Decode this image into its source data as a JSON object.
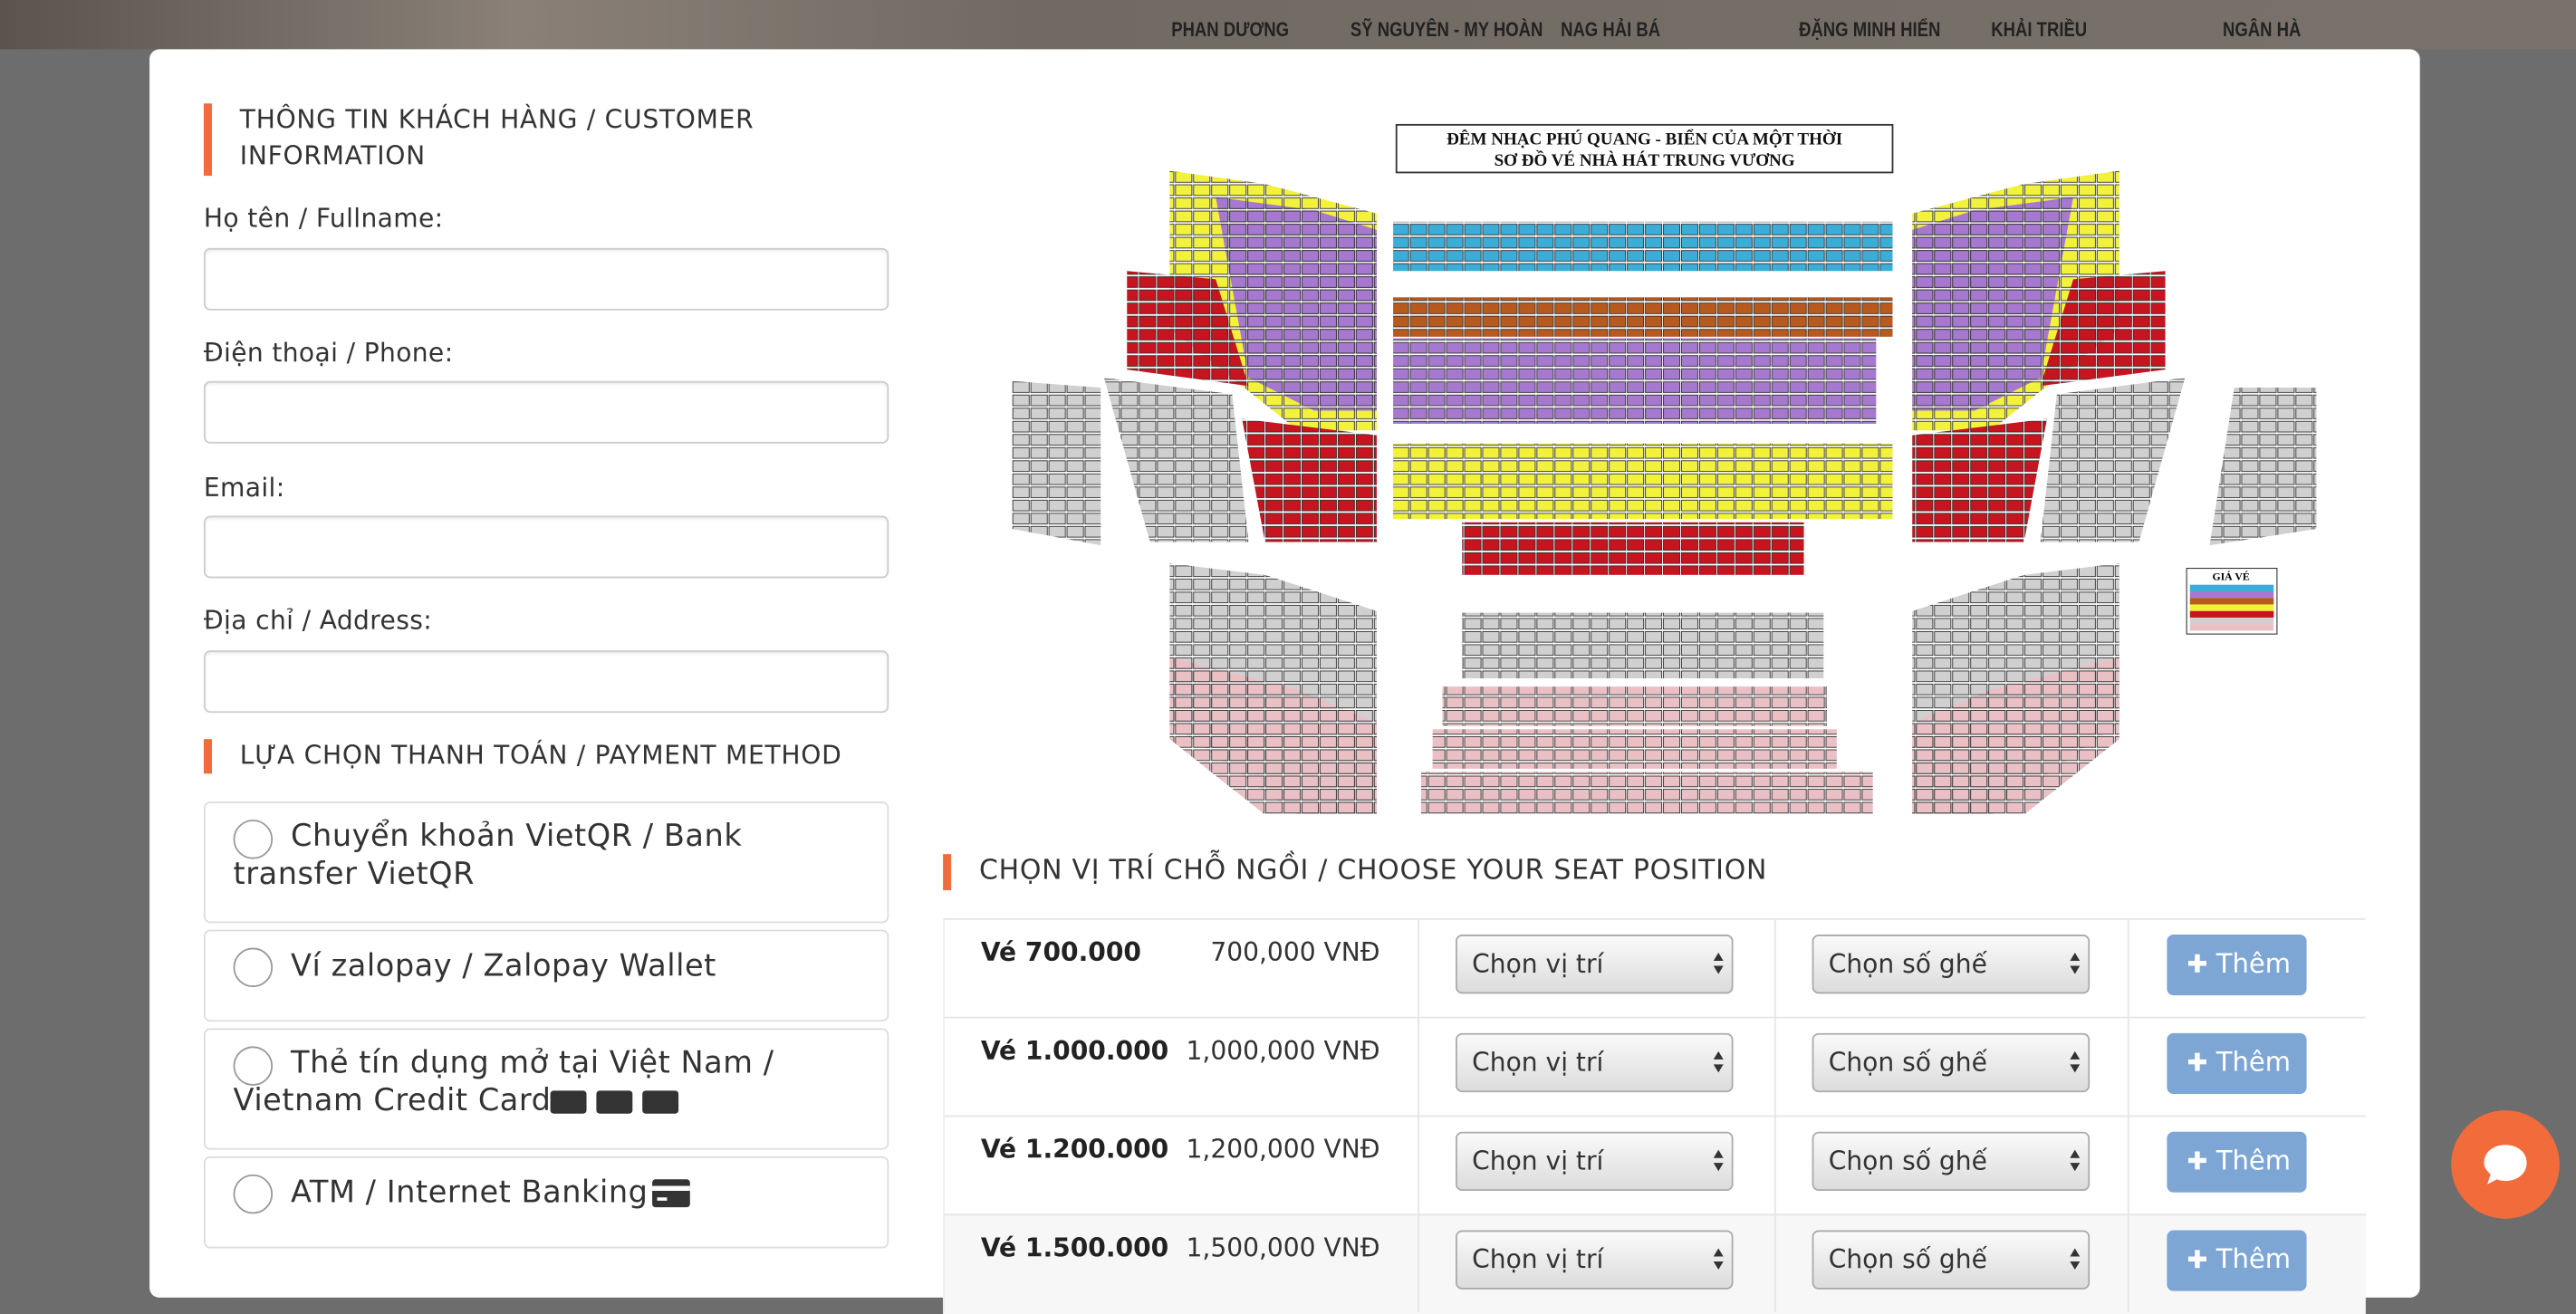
{
  "banner": {
    "credits": [
      "PHAN DƯƠNG",
      "SỸ NGUYÊN - MY HOÀN",
      "NAG HẢI BÁ",
      "ĐẶNG MINH HIỂN",
      "KHẢI TRIỀU",
      "NGÂN HÀ"
    ]
  },
  "customer": {
    "heading": "THÔNG TIN KHÁCH HÀNG / CUSTOMER INFORMATION",
    "fields": [
      "Họ tên / Fullname:",
      "Điện thoại / Phone:",
      "Email:",
      "Địa chỉ / Address:"
    ]
  },
  "payment": {
    "heading": "LỰA CHỌN THANH TOÁN / PAYMENT METHOD",
    "options": [
      "Chuyển khoản VietQR / Bank transfer VietQR",
      "Ví zalopay / Zalopay Wallet",
      "Thẻ tín dụng mở tại Việt Nam / Vietnam Credit Card",
      "ATM / Internet Banking"
    ]
  },
  "seat_map": {
    "title": "ĐÊM NHẠC PHÚ QUANG - BIỂN CỦA MỘT THỜI",
    "subtitle": "SƠ ĐỒ VÉ NHÀ HÁT TRUNG VƯƠNG",
    "legend_title": "GIÁ VÉ"
  },
  "seats": {
    "heading": "CHỌN VỊ TRÍ CHỖ NGỒI / CHOOSE YOUR SEAT POSITION",
    "rows": [
      {
        "name": "Vé 700.000",
        "price": "700,000 VNĐ",
        "position": "Chọn vị trí",
        "seat": "Chọn số ghế",
        "button": "Thêm"
      },
      {
        "name": "Vé 1.000.000",
        "price": "1,000,000 VNĐ",
        "position": "Chọn vị trí",
        "seat": "Chọn số ghế",
        "button": "Thêm"
      },
      {
        "name": "Vé 1.200.000",
        "price": "1,200,000 VNĐ",
        "position": "Chọn vị trí",
        "seat": "Chọn số ghế",
        "button": "Thêm"
      },
      {
        "name": "Vé 1.500.000",
        "price": "1,500,000 VNĐ",
        "position": "Chọn vị trí",
        "seat": "Chọn số ghế",
        "button": "Thêm"
      }
    ]
  }
}
